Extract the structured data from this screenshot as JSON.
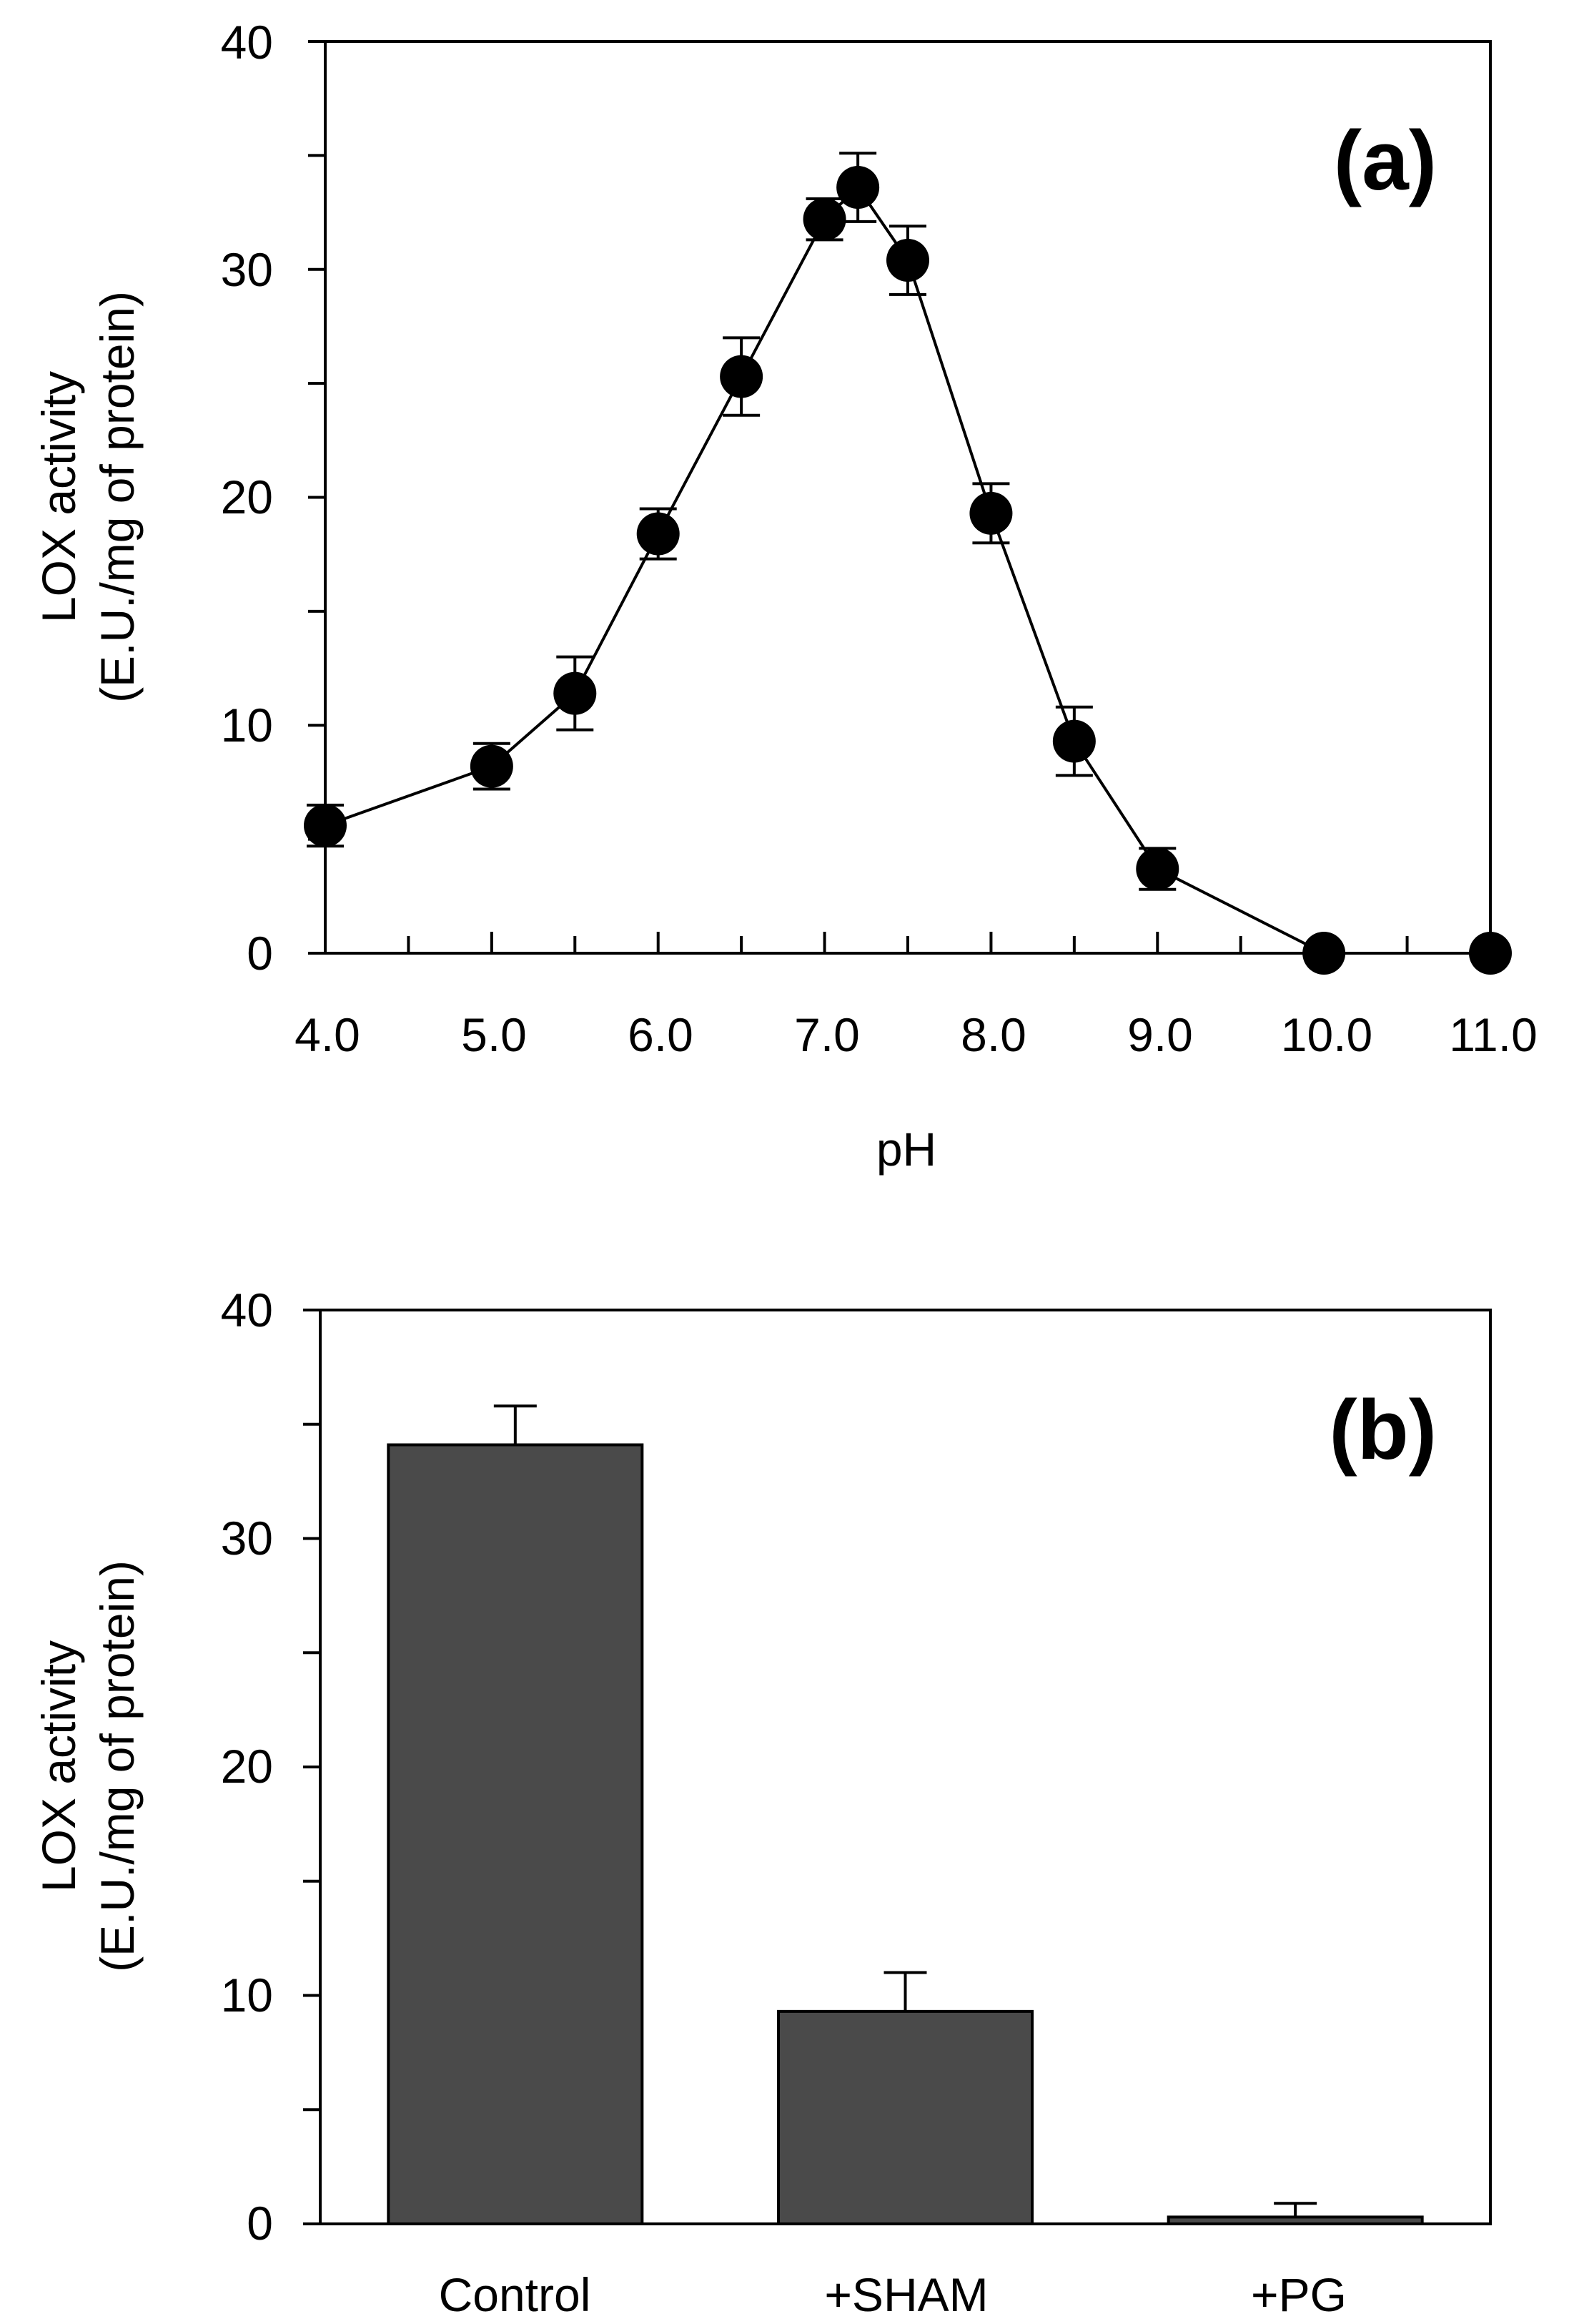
{
  "colors": {
    "ink": "#000000",
    "bar_fill": "#4a4a4a",
    "background": "#ffffff"
  },
  "chart_data": [
    {
      "type": "line",
      "panel_label": "(a)",
      "xlabel": "pH",
      "ylabel_line1": "LOX activity",
      "ylabel_line2": "(E.U./mg of protein)",
      "xlim": [
        4.0,
        11.0
      ],
      "ylim": [
        0,
        40
      ],
      "x_ticks": [
        "4.0",
        "5.0",
        "6.0",
        "7.0",
        "8.0",
        "9.0",
        "10.0",
        "11.0"
      ],
      "y_ticks": [
        "0",
        "10",
        "20",
        "30",
        "40"
      ],
      "series": [
        {
          "name": "LOX activity",
          "x": [
            4.0,
            5.0,
            5.5,
            6.0,
            6.5,
            7.0,
            7.2,
            7.5,
            8.0,
            8.5,
            9.0,
            10.0,
            11.0
          ],
          "y": [
            5.6,
            8.2,
            11.4,
            18.4,
            25.3,
            32.2,
            33.6,
            30.4,
            19.3,
            9.3,
            3.7,
            0.0,
            0.0
          ],
          "error": [
            0.9,
            1.0,
            1.6,
            1.1,
            1.7,
            0.9,
            1.5,
            1.5,
            1.3,
            1.5,
            0.9,
            0,
            0
          ]
        }
      ]
    },
    {
      "type": "bar",
      "panel_label": "(b)",
      "xlabel": "",
      "ylabel_line1": "LOX activity",
      "ylabel_line2": "(E.U./mg of protein)",
      "ylim": [
        0,
        40
      ],
      "y_ticks": [
        "0",
        "10",
        "20",
        "30",
        "40"
      ],
      "categories": [
        "Control",
        "+SHAM",
        "+PG"
      ],
      "values": [
        34.1,
        9.3,
        0.3
      ],
      "error": [
        1.7,
        1.7,
        0.6
      ]
    }
  ]
}
